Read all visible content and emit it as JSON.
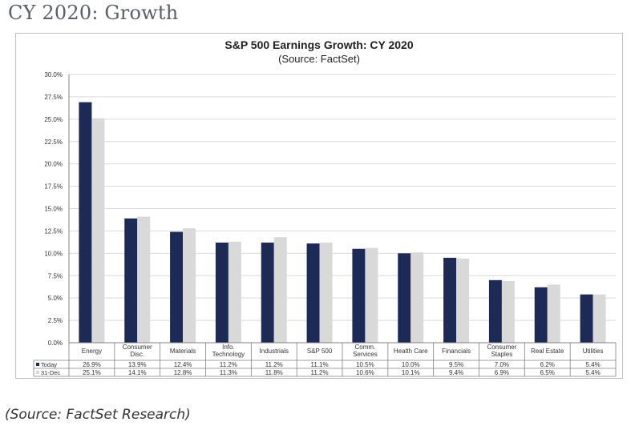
{
  "slide": {
    "title": "CY 2020: Growth",
    "caption": "(Source: FactSet Research)"
  },
  "colors": {
    "today": "#1c2a55",
    "dec31": "#d9d9d9",
    "grid": "#d9d9d9",
    "axis": "#808080",
    "text": "#333333"
  },
  "chart_data": {
    "type": "bar",
    "title": "S&P 500 Earnings Growth: CY 2020",
    "subtitle": "(Source: FactSet)",
    "categories": [
      [
        "Energy"
      ],
      [
        "Consumer",
        "Disc."
      ],
      [
        "Materials"
      ],
      [
        "Info.",
        "Technology"
      ],
      [
        "Industrials"
      ],
      [
        "S&P 500"
      ],
      [
        "Comm.",
        "Services"
      ],
      [
        "Health Care"
      ],
      [
        "Financials"
      ],
      [
        "Consumer",
        "Staples"
      ],
      [
        "Real Estate"
      ],
      [
        "Utilities"
      ]
    ],
    "series": [
      {
        "name": "Today",
        "values": [
          26.9,
          13.9,
          12.4,
          11.2,
          11.2,
          11.1,
          10.5,
          10.0,
          9.5,
          7.0,
          6.2,
          5.4
        ],
        "labels": [
          "26.9%",
          "13.9%",
          "12.4%",
          "11.2%",
          "11.2%",
          "11.1%",
          "10.5%",
          "10.0%",
          "9.5%",
          "7.0%",
          "6.2%",
          "5.4%"
        ]
      },
      {
        "name": "31-Dec",
        "values": [
          25.1,
          14.1,
          12.8,
          11.3,
          11.8,
          11.2,
          10.6,
          10.1,
          9.4,
          6.9,
          6.5,
          5.4
        ],
        "labels": [
          "25.1%",
          "14.1%",
          "12.8%",
          "11.3%",
          "11.8%",
          "11.2%",
          "10.6%",
          "10.1%",
          "9.4%",
          "6.9%",
          "6.5%",
          "5.4%"
        ]
      }
    ],
    "ylim": [
      0,
      30
    ],
    "yticks": [
      "0.0%",
      "2.5%",
      "5.0%",
      "7.5%",
      "10.0%",
      "12.5%",
      "15.0%",
      "17.5%",
      "20.0%",
      "22.5%",
      "25.0%",
      "27.5%",
      "30.0%"
    ],
    "grid": true,
    "legend": "data-table"
  }
}
